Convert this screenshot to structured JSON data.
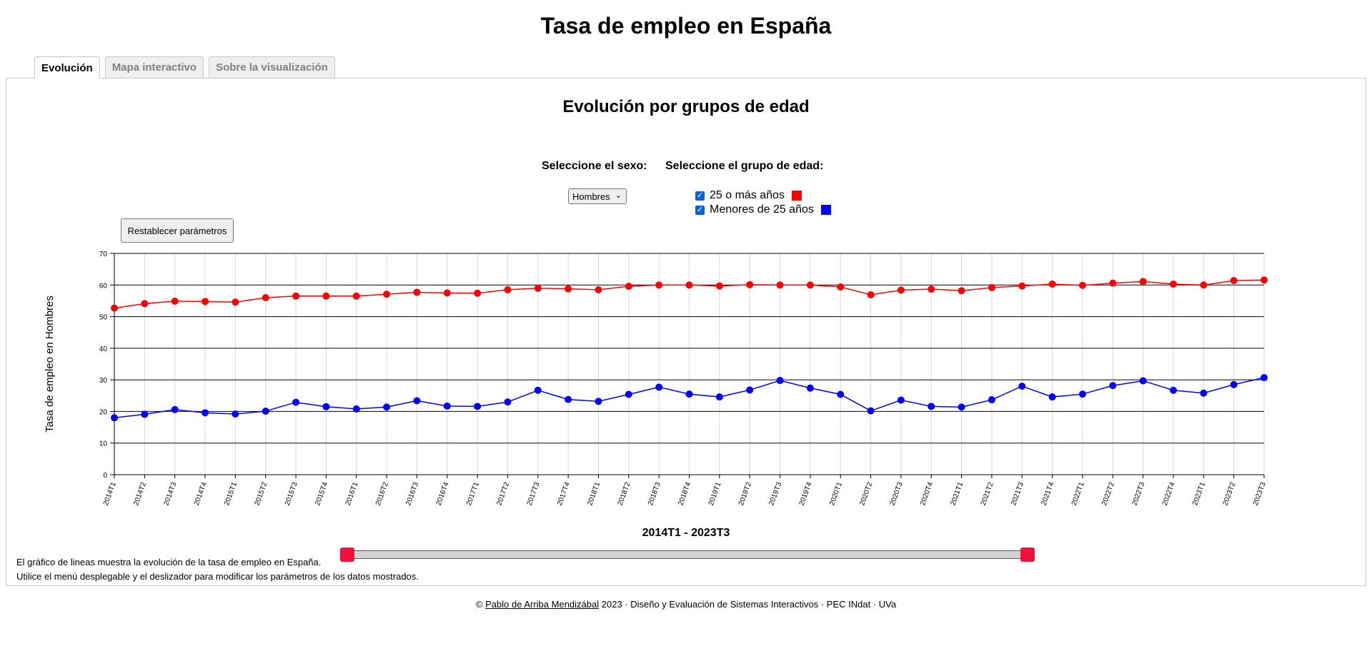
{
  "page_title": "Tasa de empleo en España",
  "tabs": [
    {
      "label": "Evolución"
    },
    {
      "label": "Mapa interactivo"
    },
    {
      "label": "Sobre la visualización"
    }
  ],
  "section_title": "Evolución por grupos de edad",
  "controls": {
    "sex_label": "Seleccione el sexo:",
    "sex_selected": "Hombres",
    "age_label": "Seleccione el grupo de edad:",
    "age_groups": [
      {
        "label": "25 o más años",
        "checked": true,
        "color": "#ff0000"
      },
      {
        "label": "Menores de 25 años",
        "checked": true,
        "color": "#0000ff"
      }
    ],
    "reset_label": "Restablecer parámetros"
  },
  "range_label": "2014T1 - 2023T3",
  "description": [
    "El gráfico de lineas muestra la evolución de la tasa de empleo en España.",
    "Utilice el menú desplegable y el deslizador para modificar los parámetros de los datos mostrados."
  ],
  "footer": {
    "copyright": "©",
    "author": "Pablo de Arriba Mendizábal",
    "rest": "2023 · Diseño y Evaluación de Sistemas Interactivos · PEC INdat · UVa"
  },
  "chart_data": {
    "type": "line",
    "ylabel": "Tasa de empleo en Hombres",
    "ylim": [
      0,
      70
    ],
    "yticks": [
      0,
      10,
      20,
      30,
      40,
      50,
      60,
      70
    ],
    "grid": "horizontal major lines, vertical light lines",
    "categories": [
      "2014T1",
      "2014T2",
      "2014T3",
      "2014T4",
      "2015T1",
      "2015T2",
      "2015T3",
      "2015T4",
      "2016T1",
      "2016T2",
      "2016T3",
      "2016T4",
      "2017T1",
      "2017T2",
      "2017T3",
      "2017T4",
      "2018T1",
      "2018T2",
      "2018T3",
      "2018T4",
      "2019T1",
      "2019T2",
      "2019T3",
      "2019T4",
      "2020T1",
      "2020T2",
      "2020T3",
      "2020T4",
      "2021T1",
      "2021T2",
      "2021T3",
      "2021T4",
      "2022T1",
      "2022T2",
      "2022T3",
      "2022T4",
      "2023T1",
      "2023T2",
      "2023T3"
    ],
    "series": [
      {
        "name": "25 o más años",
        "color": "#ff0000",
        "values": [
          52.7,
          54.1,
          54.9,
          54.8,
          54.6,
          56.0,
          56.5,
          56.5,
          56.5,
          57.1,
          57.7,
          57.5,
          57.4,
          58.5,
          59.0,
          58.8,
          58.5,
          59.6,
          60.0,
          60.0,
          59.7,
          60.1,
          60.0,
          60.0,
          59.4,
          56.9,
          58.4,
          58.7,
          58.2,
          59.2,
          59.7,
          60.3,
          59.9,
          60.6,
          61.1,
          60.3,
          60.0,
          61.4,
          61.6
        ]
      },
      {
        "name": "Menores de 25 años",
        "color": "#0000ff",
        "values": [
          18.0,
          19.1,
          20.6,
          19.6,
          19.2,
          20.1,
          22.9,
          21.5,
          20.8,
          21.4,
          23.4,
          21.7,
          21.6,
          23.0,
          26.7,
          23.8,
          23.2,
          25.4,
          27.7,
          25.5,
          24.6,
          26.8,
          29.8,
          27.4,
          25.4,
          20.2,
          23.6,
          21.6,
          21.4,
          23.7,
          28.0,
          24.6,
          25.5,
          28.2,
          29.7,
          26.7,
          25.8,
          28.5,
          30.7
        ]
      }
    ]
  }
}
